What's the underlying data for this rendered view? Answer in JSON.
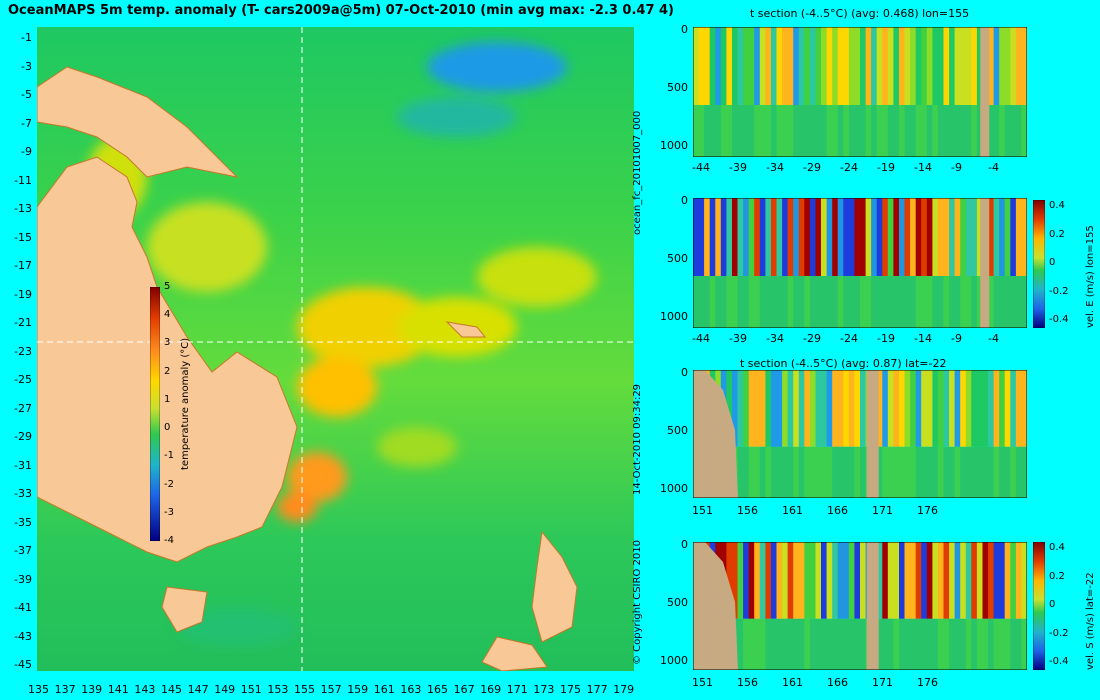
{
  "title": "OceanMAPS 5m temp. anomaly (T- cars2009a@5m) 07-Oct-2010 (min avg max: -2.3 0.47 4)",
  "map": {
    "lat_labels": [
      "-1",
      "-3",
      "-5",
      "-7",
      "-9",
      "-11",
      "-13",
      "-15",
      "-17",
      "-19",
      "-21",
      "-23",
      "-25",
      "-27",
      "-29",
      "-31",
      "-33",
      "-35",
      "-37",
      "-39",
      "-41",
      "-43",
      "-45"
    ],
    "lon_labels": [
      "135",
      "137",
      "139",
      "141",
      "143",
      "145",
      "147",
      "149",
      "151",
      "153",
      "155",
      "157",
      "159",
      "161",
      "163",
      "165",
      "167",
      "169",
      "171",
      "173",
      "175",
      "177",
      "179"
    ],
    "crosshair": {
      "lon": 155,
      "lat": -22
    },
    "colorbar": {
      "label": "temperature anomaly (°C)",
      "ticks": [
        "5",
        "4",
        "3",
        "2",
        "1",
        "0",
        "-1",
        "-2",
        "-3",
        "-4"
      ],
      "range": [
        -4,
        5
      ]
    },
    "colors": {
      "land": "#f8c896",
      "ocean_base": "#2ec850",
      "warm": "#ffd700",
      "hot": "#ff8c1e"
    }
  },
  "side_labels": {
    "run_id": "ocean_fc_20101007_000",
    "timestamp": "14-Oct-2010 09:34:29",
    "copyright": "© Copyright CSIRO 2010"
  },
  "panels": [
    {
      "id": "t-lon",
      "title": "t section (-4..5°C) (avg: 0.468) lon=155",
      "x_ticks": [
        "-44",
        "-39",
        "-34",
        "-29",
        "-24",
        "-19",
        "-14",
        "-9",
        "-4"
      ],
      "y_ticks": [
        "0",
        "500",
        "1000"
      ],
      "has_colorbar": false
    },
    {
      "id": "u-lon",
      "title": "",
      "x_ticks": [
        "-44",
        "-39",
        "-34",
        "-29",
        "-24",
        "-19",
        "-14",
        "-9",
        "-4"
      ],
      "y_ticks": [
        "0",
        "500",
        "1000"
      ],
      "has_colorbar": true,
      "cb_ticks": [
        "0.4",
        "0.2",
        "0",
        "-0.2",
        "-0.4"
      ],
      "cb_label": "vel. E (m/s) lon=155"
    },
    {
      "id": "t-lat",
      "title": "t section (-4..5°C) (avg: 0.87) lat=-22",
      "x_ticks": [
        "151",
        "156",
        "161",
        "166",
        "171",
        "176"
      ],
      "y_ticks": [
        "0",
        "500",
        "1000"
      ],
      "has_colorbar": false
    },
    {
      "id": "v-lat",
      "title": "",
      "x_ticks": [
        "151",
        "156",
        "161",
        "166",
        "171",
        "176"
      ],
      "y_ticks": [
        "0",
        "500",
        "1000"
      ],
      "has_colorbar": true,
      "cb_ticks": [
        "0.4",
        "0.2",
        "0",
        "-0.2",
        "-0.4"
      ],
      "cb_label": "vel. S (m/s) lat=-22"
    }
  ]
}
